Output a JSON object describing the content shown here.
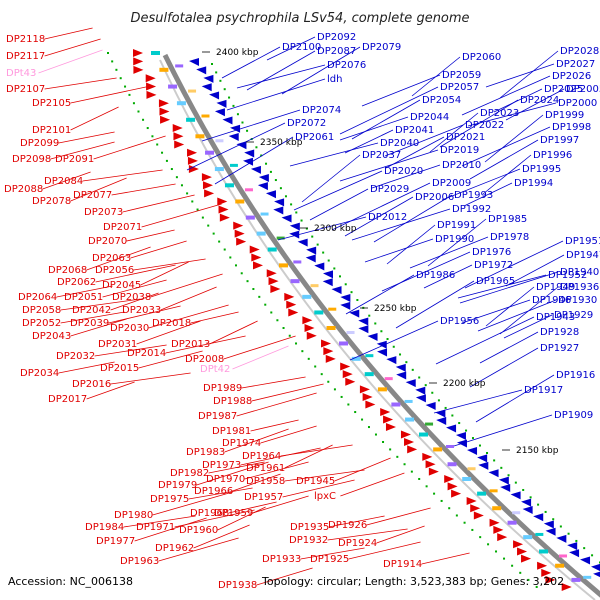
{
  "title": "Desulfotalea psychrophila LSv54, complete genome",
  "footer": {
    "accession": "Accession: NC_006138",
    "topology": "Topology: circular; Length: 3,523,383 bp; Genes: 3,202"
  },
  "colors": {
    "forward_strand": "#e00000",
    "reverse_strand": "#0000cc",
    "rna_gene": "#ff99dd",
    "backbone": "#888888",
    "tick": "#00aa00"
  },
  "scale_labels": [
    "2400 kbp",
    "2350 kbp",
    "2300 kbp",
    "2250 kbp",
    "2200 kbp",
    "2150 kbp"
  ],
  "left_labels": [
    "DP2118",
    "DP2117",
    "DPt43",
    "DP2107",
    "DP2105",
    "DP2101",
    "DP2099",
    "DP2098",
    "DP2091",
    "DP2084",
    "DP2088",
    "DP2078",
    "DP2077",
    "DP2073",
    "DP2071",
    "DP2070",
    "DP2063",
    "DP2068",
    "DP2056",
    "DP2062",
    "DP2045",
    "DP2064",
    "DP2051",
    "DP2038",
    "DP2058",
    "DP2042",
    "DP2033",
    "DP2052",
    "DP2039",
    "DP2030",
    "DP2018",
    "DP2043",
    "DP2031",
    "DP2032",
    "DP2014",
    "DP2013",
    "DP2034",
    "DP2015",
    "DP2008",
    "DP2016",
    "DP2017",
    "DPt42",
    "DP1989",
    "DP1988",
    "DP1987",
    "DP1981",
    "DP1974",
    "DP1983",
    "DP1964",
    "DP1973",
    "DP1961",
    "DP1982",
    "DP1970",
    "DP1979",
    "DP1958",
    "DP1966",
    "DP1945",
    "DP1975",
    "DP1957",
    "DP1980",
    "DP1968",
    "DP1959",
    "lpxC",
    "DP1984",
    "DP1971",
    "DP1960",
    "DP1935",
    "DP1926",
    "DP1977",
    "DP1932",
    "DP1924",
    "DP1962",
    "DP1933",
    "DP1925",
    "DP1963",
    "DP1914",
    "DP1938"
  ],
  "right_labels": [
    "DP2092",
    "DP2100",
    "DP2087",
    "DP2079",
    "DP2076",
    "ldh",
    "DP2060",
    "DP2028",
    "DP2027",
    "DP2059",
    "DP2026",
    "DP2057",
    "DP2025",
    "DP2005",
    "DP2054",
    "DP2024",
    "DP2000",
    "DP2074",
    "DP2023",
    "DP1999",
    "DP2044",
    "DP2022",
    "DP1998",
    "DP2072",
    "DP2041",
    "DP2021",
    "DP1997",
    "DP2061",
    "DP2040",
    "DP2019",
    "DP1996",
    "DP2037",
    "DP2010",
    "DP1995",
    "DP2020",
    "DP2009",
    "DP1994",
    "DP2029",
    "DP2006",
    "DP1993",
    "DP2012",
    "DP1992",
    "DP1991",
    "DP1985",
    "DP1990",
    "DP1978",
    "DP1976",
    "DP1951",
    "DP1972",
    "DP1947",
    "DP1986",
    "DP1965",
    "DP1952",
    "DP1940",
    "DP1949",
    "DP1936",
    "DP1946",
    "DP1930",
    "DP1956",
    "DP1943",
    "DP1929",
    "DP1928",
    "DP1927",
    "DP1916",
    "DP1917",
    "DP1909"
  ]
}
